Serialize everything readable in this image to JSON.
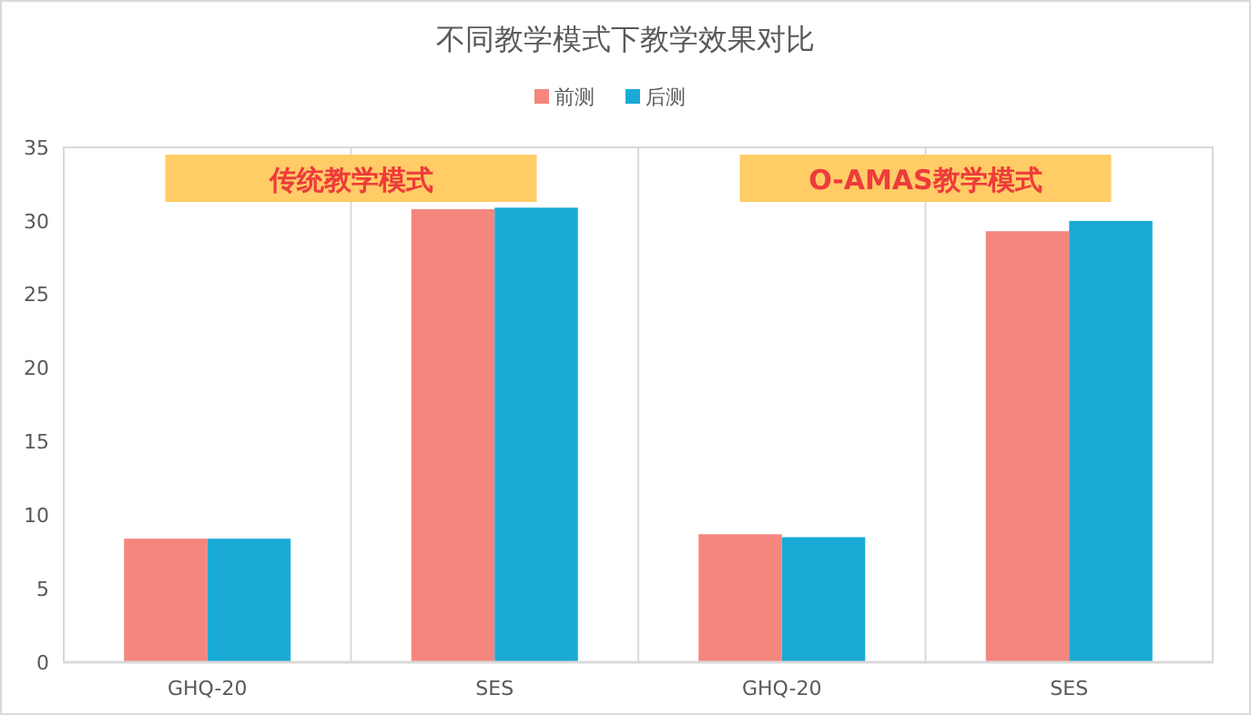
{
  "chart_data": {
    "type": "bar",
    "title": "不同教学模式下教学效果对比",
    "categories": [
      "GHQ-20",
      "SES",
      "GHQ-20",
      "SES"
    ],
    "series": [
      {
        "name": "前测",
        "color": "#f4867e",
        "values": [
          8.4,
          30.8,
          8.7,
          29.3
        ]
      },
      {
        "name": "后测",
        "color": "#1aaad6",
        "values": [
          8.4,
          30.9,
          8.5,
          30.0
        ]
      }
    ],
    "ylim": [
      0,
      35
    ],
    "yticks": [
      0,
      5,
      10,
      15,
      20,
      25,
      30,
      35
    ],
    "grid": "x",
    "legend": "top",
    "annotations": [
      "传统教学模式",
      "O-AMAS教学模式"
    ]
  }
}
